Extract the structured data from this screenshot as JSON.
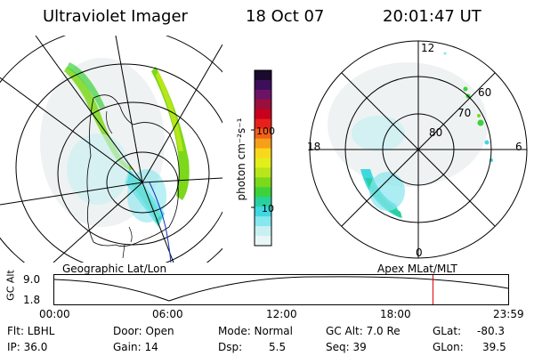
{
  "header": {
    "instrument": "Ultraviolet Imager",
    "date": "18 Oct 07",
    "time": "20:01:47 UT"
  },
  "left_panel": {
    "caption": "Geographic Lat/Lon"
  },
  "right_panel": {
    "caption": "Apex  MLat/MLT",
    "mlt_labels": [
      "12",
      "18",
      "6",
      "0"
    ],
    "lat_labels": [
      "60",
      "70",
      "80"
    ]
  },
  "colorbar": {
    "unit_label": "photon cm⁻²s⁻¹",
    "tick_labels": [
      "100",
      "10"
    ],
    "colors": [
      "#1a0a2e",
      "#3d0f5a",
      "#6b1466",
      "#9a0f3c",
      "#c8001e",
      "#e8201a",
      "#f2601a",
      "#f5a018",
      "#f8d81a",
      "#e4ee1a",
      "#b8e61a",
      "#7cd81a",
      "#3cd23a",
      "#28d0a0",
      "#40d8e0",
      "#88e6ee",
      "#c8f0f2",
      "#e8f6f6"
    ]
  },
  "timeline": {
    "axis_label": "GC Alt",
    "y_max": "9.0",
    "y_min": "1.8",
    "x_ticks": [
      "00:00",
      "06:00",
      "12:00",
      "18:00",
      "23:59"
    ],
    "current_marker_hours": 20.03
  },
  "info": {
    "filter": "Flt: LBHL",
    "ip": "IP: 36.0",
    "door": "Door: Open",
    "gain": "Gain: 14",
    "mode": "Mode: Normal",
    "dsp_label": "Dsp:",
    "dsp_value": "5.5",
    "gc_alt": "GC Alt: 7.0 Re",
    "seq": "Seq: 39",
    "glat_label": "GLat:",
    "glat_value": "-80.3",
    "glon_label": "GLon:",
    "glon_value": "39.5"
  }
}
